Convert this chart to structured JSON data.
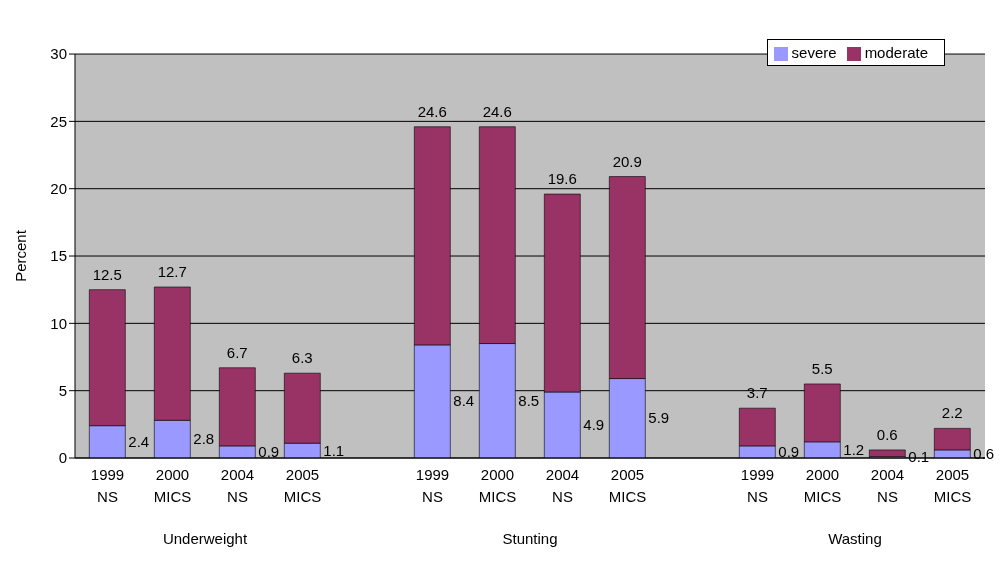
{
  "chart_data": {
    "type": "bar",
    "stacked": true,
    "ylabel": "Percent",
    "categories": [
      "1999 NS",
      "2000 MICS",
      "2004 NS",
      "2005 MICS",
      null,
      "1999 NS",
      "2000 MICS",
      "2004 NS",
      "2005 MICS",
      null,
      "1999 NS",
      "2000 MICS",
      "2004 NS",
      "2005 MICS"
    ],
    "series": [
      {
        "name": "severe",
        "color": "#9999ff",
        "values": [
          2.4,
          2.8,
          0.9,
          1.1,
          null,
          8.4,
          8.5,
          4.9,
          5.9,
          null,
          0.9,
          1.2,
          0.1,
          0.6
        ],
        "value_labels": [
          "2.4",
          "2.8",
          "0.9",
          "1.1",
          null,
          "8.4",
          "8.5",
          "4.9",
          "5.9",
          null,
          "0.9",
          "1.2",
          "0.1",
          "0.6"
        ]
      },
      {
        "name": "moderate",
        "color": "#993366",
        "values": [
          10.1,
          9.9,
          5.8,
          5.2,
          null,
          16.2,
          16.1,
          14.7,
          15.0,
          null,
          2.8,
          4.3,
          0.5,
          1.6
        ]
      }
    ],
    "totals": [
      "12.5",
      "12.7",
      "6.7",
      "6.3",
      null,
      "24.6",
      "24.6",
      "19.6",
      "20.9",
      null,
      "3.7",
      "5.5",
      "0.6",
      "2.2"
    ],
    "annotations": [
      "Underweight",
      "Stunting",
      "Wasting"
    ],
    "ylim": [
      0,
      30
    ],
    "yticks": [
      0,
      5,
      10,
      15,
      20,
      25,
      30
    ],
    "grid": "y",
    "legend": "top right"
  }
}
